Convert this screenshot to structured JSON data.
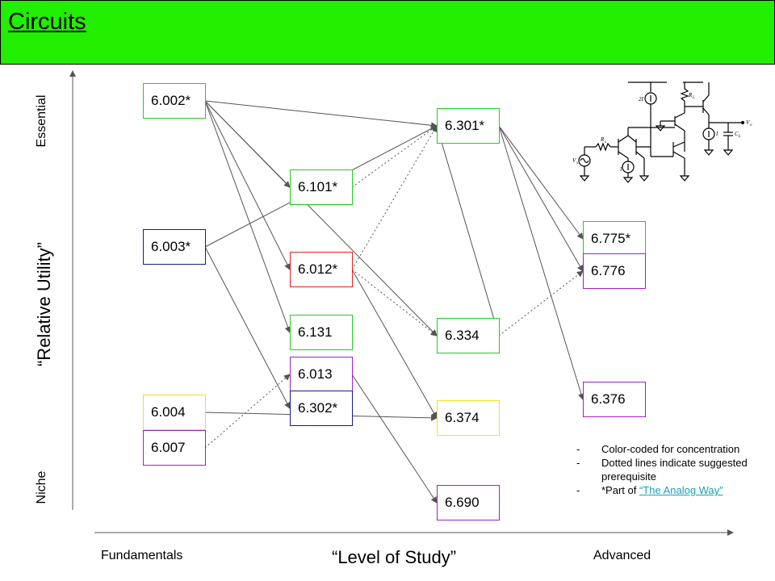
{
  "header": {
    "title": "Circuits",
    "color": "#22ee00"
  },
  "axes": {
    "y_title": "“Relative Utility”",
    "y_top": "Essential",
    "y_bottom": "Niche",
    "x_title": "“Level of Study”",
    "x_left": "Fundamentals",
    "x_right": "Advanced"
  },
  "concentration_colors": {
    "green": "#22cc22",
    "navy": "#1a1a80",
    "red": "#dd2222",
    "yellow": "#f2e020",
    "purple": "#9a22c8"
  },
  "courses": [
    {
      "id": "6.002",
      "label": "6.002*",
      "color": "green"
    },
    {
      "id": "6.003",
      "label": "6.003*",
      "color": "navy"
    },
    {
      "id": "6.004",
      "label": "6.004",
      "color": "yellow"
    },
    {
      "id": "6.007",
      "label": "6.007",
      "color": "purple"
    },
    {
      "id": "6.101",
      "label": "6.101*",
      "color": "green"
    },
    {
      "id": "6.012",
      "label": "6.012*",
      "color": "red"
    },
    {
      "id": "6.131",
      "label": "6.131",
      "color": "green"
    },
    {
      "id": "6.013",
      "label": "6.013",
      "color": "purple"
    },
    {
      "id": "6.302",
      "label": "6.302*",
      "color": "navy"
    },
    {
      "id": "6.301",
      "label": "6.301*",
      "color": "green"
    },
    {
      "id": "6.334",
      "label": "6.334",
      "color": "green"
    },
    {
      "id": "6.374",
      "label": "6.374",
      "color": "yellow"
    },
    {
      "id": "6.690",
      "label": "6.690",
      "color": "purple"
    },
    {
      "id": "6.775",
      "label": "6.775*",
      "color": "green"
    },
    {
      "id": "6.776",
      "label": "6.776",
      "color": "purple"
    },
    {
      "id": "6.376",
      "label": "6.376",
      "color": "purple"
    }
  ],
  "edges": [
    {
      "from": "6.002",
      "to": "6.301",
      "style": "solid"
    },
    {
      "from": "6.002",
      "to": "6.101",
      "style": "solid"
    },
    {
      "from": "6.002",
      "to": "6.012",
      "style": "solid"
    },
    {
      "from": "6.002",
      "to": "6.131",
      "style": "solid"
    },
    {
      "from": "6.002",
      "to": "6.334",
      "style": "solid"
    },
    {
      "from": "6.003",
      "to": "6.301",
      "style": "solid"
    },
    {
      "from": "6.003",
      "to": "6.302",
      "style": "solid"
    },
    {
      "from": "6.004",
      "to": "6.374",
      "style": "solid"
    },
    {
      "from": "6.007",
      "to": "6.013",
      "style": "dotted"
    },
    {
      "from": "6.101",
      "to": "6.301",
      "style": "dotted"
    },
    {
      "from": "6.012",
      "to": "6.301",
      "style": "dotted"
    },
    {
      "from": "6.012",
      "to": "6.334",
      "style": "dotted"
    },
    {
      "from": "6.012",
      "to": "6.374",
      "style": "solid"
    },
    {
      "from": "6.013",
      "to": "6.690",
      "style": "solid"
    },
    {
      "from": "6.334",
      "to": "6.776",
      "style": "dotted"
    },
    {
      "from": "6.301",
      "to": "6.775",
      "style": "solid"
    },
    {
      "from": "6.301",
      "to": "6.776",
      "style": "solid"
    },
    {
      "from": "6.301",
      "to": "6.376",
      "style": "solid"
    },
    {
      "from": "6.334",
      "to": "6.301",
      "style": "solid"
    }
  ],
  "notes": {
    "dash": "-",
    "item1": "Color-coded for concentration",
    "item2": "Dotted lines indicate suggested prerequisite",
    "item3_prefix": "*Part of ",
    "item3_link": "“The Analog Way”"
  },
  "circuit_labels": {
    "two_i": "2I",
    "rl": "R",
    "rl_sub": "L",
    "vo": "V",
    "vo_sub": "o",
    "i_right": "I",
    "cl": "C",
    "cl_sub": "L",
    "rs": "R",
    "rs_sub": "s",
    "vs": "V",
    "vs_sub": "s",
    "i_left": "I"
  }
}
